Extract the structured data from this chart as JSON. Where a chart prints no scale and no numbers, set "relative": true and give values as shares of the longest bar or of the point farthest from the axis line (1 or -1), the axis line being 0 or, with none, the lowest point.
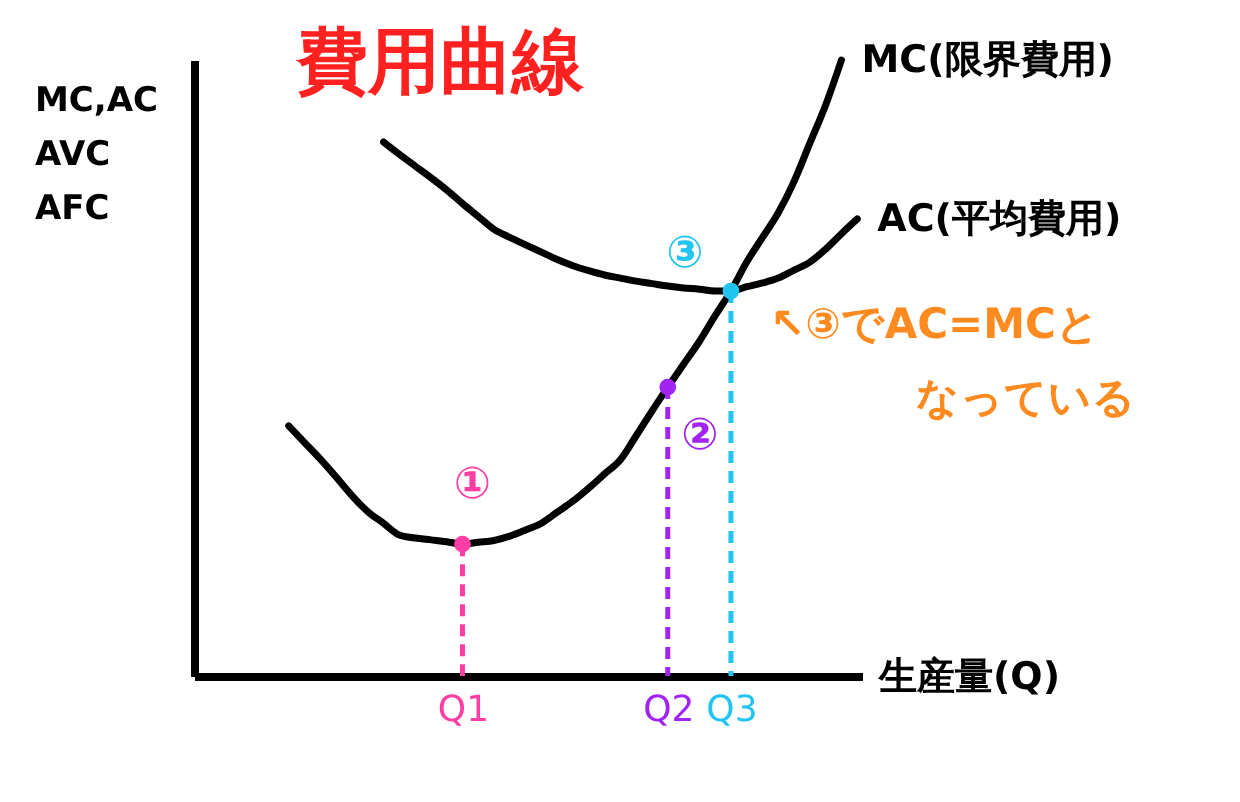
{
  "chart_data": {
    "type": "line",
    "title": "費用曲線",
    "ylabel": "MC,AC\nAVC\nAFC",
    "xlabel": "生産量(Q)",
    "relative": true,
    "line_style": "solid",
    "categories": [
      null,
      null,
      null,
      null,
      null,
      null,
      null,
      null,
      null,
      null,
      null,
      "Q1",
      null,
      null,
      null,
      null,
      null,
      null,
      null,
      null,
      null,
      null,
      null,
      null,
      "Q2",
      null,
      null,
      null,
      "Q3",
      null,
      null,
      null,
      null,
      null,
      null,
      null,
      null
    ],
    "series": [
      {
        "name": "MC(限界費用)",
        "color": "#000000",
        "values": [
          0.406,
          0.379,
          0.352,
          0.323,
          0.293,
          0.267,
          0.248,
          0.229,
          0.224,
          0.221,
          0.218,
          0.214,
          0.217,
          0.22,
          0.227,
          0.237,
          0.248,
          0.266,
          0.284,
          0.305,
          0.328,
          0.351,
          0.39,
          0.43,
          0.469,
          0.506,
          0.543,
          0.585,
          0.625,
          0.672,
          0.712,
          0.752,
          0.803,
          0.865,
          0.927,
          1.0,
          null
        ]
      },
      {
        "name": "AC(平均費用)",
        "color": "#000000",
        "values": [
          null,
          null,
          null,
          null,
          null,
          null,
          0.867,
          0.847,
          0.828,
          0.809,
          0.789,
          0.767,
          0.746,
          0.725,
          0.712,
          0.7,
          0.688,
          0.676,
          0.666,
          0.658,
          0.651,
          0.646,
          0.641,
          0.637,
          0.633,
          0.63,
          0.628,
          0.625,
          0.625,
          0.632,
          0.638,
          0.646,
          0.659,
          0.672,
          0.693,
          0.718,
          0.742
        ]
      },
      {
        "type": "lollipop",
        "x": [
          "Q1",
          "Q2",
          "Q3"
        ],
        "values": [
          0.214,
          0.469,
          0.625
        ],
        "colors": [
          "#ff3ea5",
          "#a224f2",
          "#22c4f0"
        ],
        "line_style": "dashed"
      }
    ],
    "annotations": [
      {
        "text": "①",
        "x": "Q1",
        "y": 0.214
      },
      {
        "text": "②",
        "x": "Q2",
        "y": 0.469
      },
      {
        "text": "③",
        "x": "Q3",
        "y": 0.625
      },
      "↖③でAC=MCと",
      "なっている"
    ]
  }
}
